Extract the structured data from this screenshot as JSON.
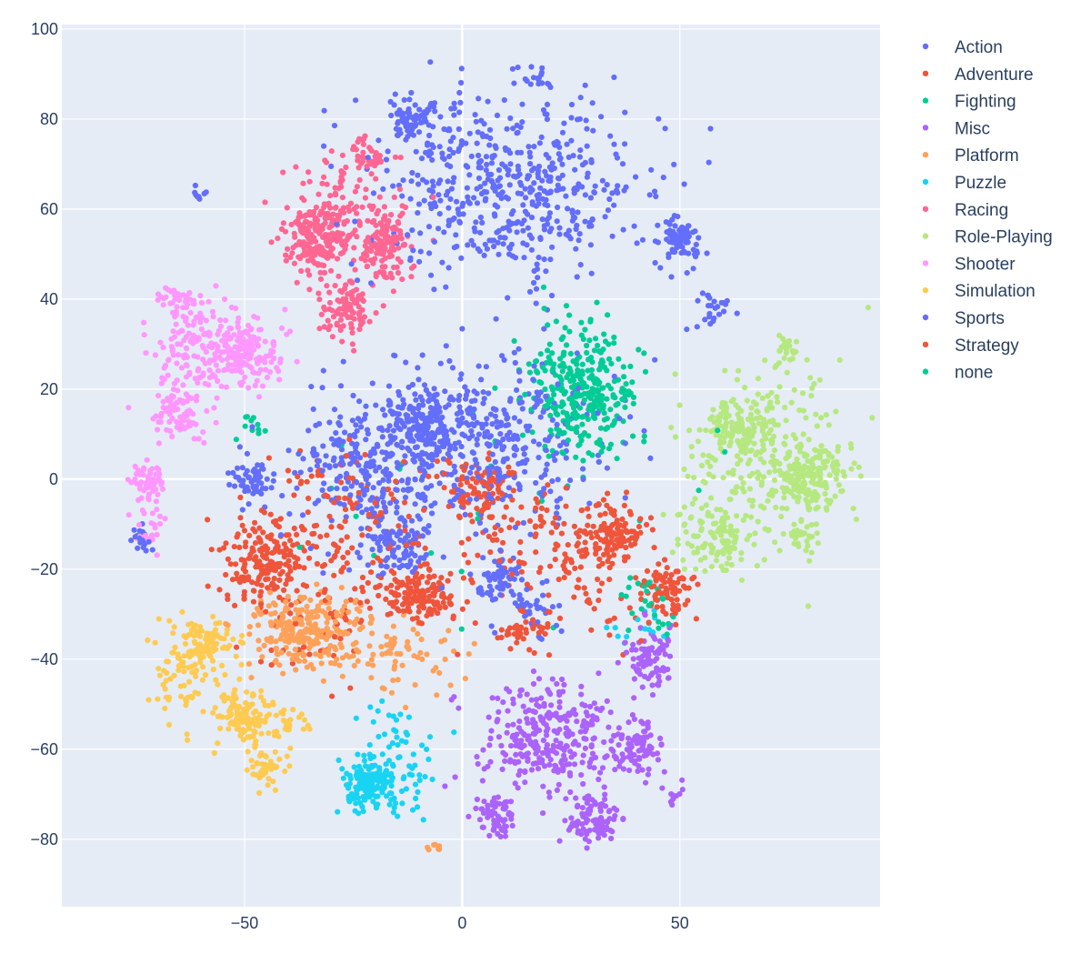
{
  "chart_data": {
    "type": "scatter",
    "title": "",
    "xlabel": "",
    "ylabel": "",
    "xlim": [
      -92,
      96
    ],
    "ylim": [
      -95,
      101
    ],
    "x_ticks": [
      {
        "value": -50,
        "label": "−50"
      },
      {
        "value": 0,
        "label": "0"
      },
      {
        "value": 50,
        "label": "50"
      }
    ],
    "y_ticks": [
      {
        "value": 100,
        "label": "100"
      },
      {
        "value": 80,
        "label": "80"
      },
      {
        "value": 60,
        "label": "60"
      },
      {
        "value": 40,
        "label": "40"
      },
      {
        "value": 20,
        "label": "20"
      },
      {
        "value": 0,
        "label": "0"
      },
      {
        "value": -20,
        "label": "−20"
      },
      {
        "value": -40,
        "label": "−40"
      },
      {
        "value": -60,
        "label": "−60"
      },
      {
        "value": -80,
        "label": "−80"
      }
    ],
    "grid": true,
    "legend_position": "right",
    "series": [
      {
        "name": "Action",
        "color": "#636efa",
        "clusters": [
          {
            "cx": 10,
            "cy": 65,
            "sx": 16,
            "sy": 10,
            "n": 520
          },
          {
            "cx": -12,
            "cy": 80,
            "sx": 3,
            "sy": 3,
            "n": 70
          },
          {
            "cx": 50,
            "cy": 53,
            "sx": 2.5,
            "sy": 2.5,
            "n": 80
          },
          {
            "cx": 18,
            "cy": 89,
            "sx": 1.5,
            "sy": 1,
            "n": 15
          },
          {
            "cx": -60,
            "cy": 63,
            "sx": 1,
            "sy": 1,
            "n": 8
          },
          {
            "cx": 58,
            "cy": 38,
            "sx": 3,
            "sy": 2,
            "n": 25
          },
          {
            "cx": -8,
            "cy": 12,
            "sx": 5,
            "sy": 5,
            "n": 210
          },
          {
            "cx": -20,
            "cy": 2,
            "sx": 9,
            "sy": 9,
            "n": 300
          },
          {
            "cx": -48,
            "cy": 0,
            "sx": 2.5,
            "sy": 3,
            "n": 60
          },
          {
            "cx": 8,
            "cy": -22,
            "sx": 2.5,
            "sy": 2.5,
            "n": 60
          },
          {
            "cx": -15,
            "cy": -15,
            "sx": 4,
            "sy": 4,
            "n": 90
          },
          {
            "cx": 15,
            "cy": 10,
            "sx": 12,
            "sy": 10,
            "n": 180
          },
          {
            "cx": 15,
            "cy": -30,
            "sx": 4,
            "sy": 4,
            "n": 40
          },
          {
            "cx": -74,
            "cy": -13,
            "sx": 1.2,
            "sy": 1.5,
            "n": 20
          }
        ]
      },
      {
        "name": "Adventure",
        "color": "#ef553b",
        "clusters": [
          {
            "cx": -45,
            "cy": -18,
            "sx": 5,
            "sy": 4,
            "n": 150
          },
          {
            "cx": -10,
            "cy": -26,
            "sx": 5,
            "sy": 3,
            "n": 140
          },
          {
            "cx": 5,
            "cy": -3,
            "sx": 4,
            "sy": 4,
            "n": 110
          },
          {
            "cx": 35,
            "cy": -13,
            "sx": 4,
            "sy": 3,
            "n": 110
          },
          {
            "cx": 48,
            "cy": -25,
            "sx": 3,
            "sy": 3,
            "n": 80
          },
          {
            "cx": -28,
            "cy": -8,
            "sx": 10,
            "sy": 7,
            "n": 110
          },
          {
            "cx": 20,
            "cy": -15,
            "sx": 10,
            "sy": 7,
            "n": 90
          },
          {
            "cx": 15,
            "cy": -33,
            "sx": 3,
            "sy": 2,
            "n": 40
          },
          {
            "cx": -35,
            "cy": -30,
            "sx": 10,
            "sy": 7,
            "n": 60
          }
        ]
      },
      {
        "name": "Fighting",
        "color": "#00cc96",
        "clusters": [
          {
            "cx": 28,
            "cy": 20,
            "sx": 6,
            "sy": 7,
            "n": 320
          },
          {
            "cx": -48,
            "cy": 12,
            "sx": 1.5,
            "sy": 1,
            "n": 10
          },
          {
            "cx": 42,
            "cy": -28,
            "sx": 4,
            "sy": 3,
            "n": 25
          }
        ]
      },
      {
        "name": "Misc",
        "color": "#ab63fa",
        "clusters": [
          {
            "cx": 20,
            "cy": -58,
            "sx": 8,
            "sy": 6,
            "n": 300
          },
          {
            "cx": 30,
            "cy": -76,
            "sx": 3,
            "sy": 3,
            "n": 90
          },
          {
            "cx": 8,
            "cy": -75,
            "sx": 2.5,
            "sy": 2.5,
            "n": 60
          },
          {
            "cx": 40,
            "cy": -60,
            "sx": 3,
            "sy": 3,
            "n": 80
          },
          {
            "cx": 43,
            "cy": -40,
            "sx": 3,
            "sy": 4,
            "n": 90
          },
          {
            "cx": 48,
            "cy": -70,
            "sx": 1.5,
            "sy": 1,
            "n": 10
          }
        ]
      },
      {
        "name": "Platform",
        "color": "#ffa15a",
        "clusters": [
          {
            "cx": -35,
            "cy": -33,
            "sx": 7,
            "sy": 4,
            "n": 260
          },
          {
            "cx": -15,
            "cy": -40,
            "sx": 8,
            "sy": 4,
            "n": 70
          },
          {
            "cx": -6,
            "cy": -82,
            "sx": 0.8,
            "sy": 0.6,
            "n": 8
          }
        ]
      },
      {
        "name": "Puzzle",
        "color": "#19d3f3",
        "clusters": [
          {
            "cx": -22,
            "cy": -68,
            "sx": 3,
            "sy": 3,
            "n": 140
          },
          {
            "cx": -14,
            "cy": -62,
            "sx": 4,
            "sy": 6,
            "n": 70
          },
          {
            "cx": 42,
            "cy": -33,
            "sx": 3,
            "sy": 2,
            "n": 15
          }
        ]
      },
      {
        "name": "Racing",
        "color": "#ff6692",
        "clusters": [
          {
            "cx": -33,
            "cy": 53,
            "sx": 4,
            "sy": 4,
            "n": 200
          },
          {
            "cx": -18,
            "cy": 52,
            "sx": 3,
            "sy": 4,
            "n": 130
          },
          {
            "cx": -27,
            "cy": 38,
            "sx": 3,
            "sy": 3,
            "n": 100
          },
          {
            "cx": -22,
            "cy": 72,
            "sx": 2,
            "sy": 2,
            "n": 35
          },
          {
            "cx": -27,
            "cy": 62,
            "sx": 6,
            "sy": 5,
            "n": 90
          }
        ]
      },
      {
        "name": "Role-Playing",
        "color": "#b6e880",
        "clusters": [
          {
            "cx": 80,
            "cy": 0,
            "sx": 4,
            "sy": 4,
            "n": 150
          },
          {
            "cx": 63,
            "cy": 12,
            "sx": 3,
            "sy": 3,
            "n": 80
          },
          {
            "cx": 58,
            "cy": -13,
            "sx": 4,
            "sy": 4,
            "n": 110
          },
          {
            "cx": 70,
            "cy": 5,
            "sx": 9,
            "sy": 10,
            "n": 260
          },
          {
            "cx": 75,
            "cy": 29,
            "sx": 1.5,
            "sy": 1.5,
            "n": 20
          },
          {
            "cx": 78,
            "cy": -13,
            "sx": 2,
            "sy": 2,
            "n": 30
          }
        ]
      },
      {
        "name": "Shooter",
        "color": "#ff97ff",
        "clusters": [
          {
            "cx": -50,
            "cy": 28,
            "sx": 4,
            "sy": 3.5,
            "n": 170
          },
          {
            "cx": -65,
            "cy": 14,
            "sx": 3,
            "sy": 3,
            "n": 80
          },
          {
            "cx": -72,
            "cy": 0,
            "sx": 2,
            "sy": 2.5,
            "n": 60
          },
          {
            "cx": -62,
            "cy": 30,
            "sx": 5,
            "sy": 6,
            "n": 140
          },
          {
            "cx": -65,
            "cy": 40,
            "sx": 2,
            "sy": 2,
            "n": 25
          },
          {
            "cx": -72,
            "cy": -12,
            "sx": 2,
            "sy": 3,
            "n": 20
          }
        ]
      },
      {
        "name": "Simulation",
        "color": "#fecb52",
        "clusters": [
          {
            "cx": -50,
            "cy": -53,
            "sx": 3,
            "sy": 3,
            "n": 130
          },
          {
            "cx": -58,
            "cy": -37,
            "sx": 3,
            "sy": 3,
            "n": 100
          },
          {
            "cx": -45,
            "cy": -64,
            "sx": 2,
            "sy": 2,
            "n": 40
          },
          {
            "cx": -65,
            "cy": -42,
            "sx": 3,
            "sy": 6,
            "n": 70
          },
          {
            "cx": -40,
            "cy": -54,
            "sx": 2,
            "sy": 2,
            "n": 25
          }
        ]
      },
      {
        "name": "Sports",
        "color": "#636efa",
        "clusters": [
          {
            "cx": 5,
            "cy": 5,
            "sx": 10,
            "sy": 8,
            "n": 120
          }
        ]
      },
      {
        "name": "Strategy",
        "color": "#ef553b",
        "clusters": [
          {
            "cx": -25,
            "cy": -20,
            "sx": 15,
            "sy": 10,
            "n": 60
          },
          {
            "cx": 30,
            "cy": -25,
            "sx": 10,
            "sy": 8,
            "n": 40
          }
        ]
      },
      {
        "name": "none",
        "color": "#00cc96",
        "clusters": [
          {
            "cx": 10,
            "cy": 0,
            "sx": 25,
            "sy": 20,
            "n": 30
          }
        ]
      }
    ]
  }
}
